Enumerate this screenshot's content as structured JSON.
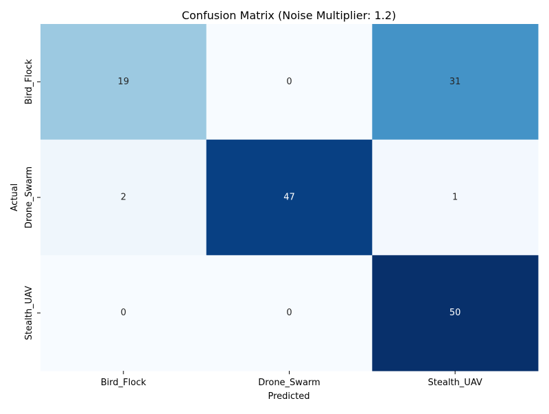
{
  "chart_data": {
    "type": "heatmap",
    "title": "Confusion Matrix (Noise Multiplier: 1.2)",
    "xlabel": "Predicted",
    "ylabel": "Actual",
    "x_categories": [
      "Bird_Flock",
      "Drone_Swarm",
      "Stealth_UAV"
    ],
    "y_categories": [
      "Bird_Flock",
      "Drone_Swarm",
      "Stealth_UAV"
    ],
    "values": [
      [
        19,
        0,
        31
      ],
      [
        2,
        47,
        1
      ],
      [
        0,
        0,
        50
      ]
    ],
    "color_range": [
      0,
      50
    ],
    "colormap": "Blues",
    "annotate": true,
    "colorbar": false
  }
}
